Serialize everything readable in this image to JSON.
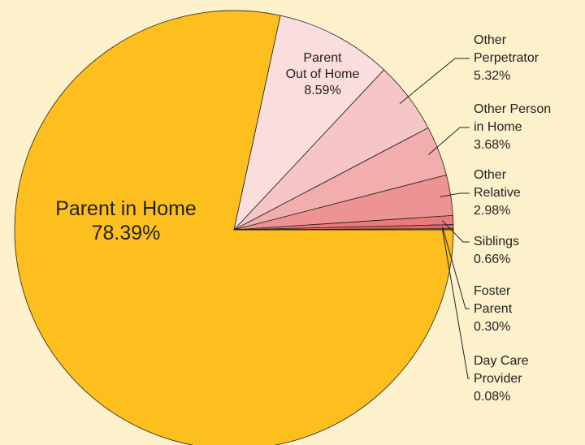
{
  "chart_data": {
    "type": "pie",
    "categories": [
      "Parent in Home",
      "Parent\nOut of Home",
      "Other\nPerpetrator",
      "Other Person\nin Home",
      "Other\nRelative",
      "Siblings",
      "Foster\nParent",
      "Day Care\nProvider"
    ],
    "values": [
      78.39,
      8.59,
      5.32,
      3.68,
      2.98,
      0.66,
      0.3,
      0.08
    ],
    "value_labels": [
      "78.39%",
      "8.59%",
      "5.32%",
      "3.68%",
      "2.98%",
      "0.66%",
      "0.30%",
      "0.08%"
    ],
    "colors": [
      "#fdbf1e",
      "#fadddd",
      "#f6c5c5",
      "#f2adad",
      "#ee9393",
      "#e97b7b",
      "#e46767",
      "#de5858"
    ]
  }
}
